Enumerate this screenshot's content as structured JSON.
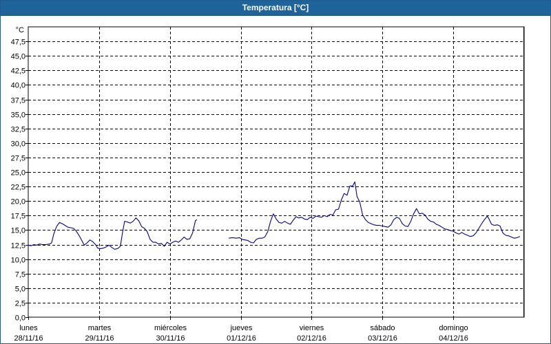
{
  "window": {
    "title": "Temperatura [°C]"
  },
  "chart_data": {
    "type": "line",
    "title": "Temperatura [°C]",
    "ylabel": "°C",
    "ylim": [
      0,
      50
    ],
    "yticks": [
      "0,0",
      "2,5",
      "5,0",
      "7,5",
      "10,0",
      "12,5",
      "15,0",
      "17,5",
      "20,0",
      "22,5",
      "25,0",
      "27,5",
      "30,0",
      "32,5",
      "35,0",
      "37,5",
      "40,0",
      "42,5",
      "45,0",
      "47,5"
    ],
    "xlim": [
      0,
      7
    ],
    "grid": true,
    "x_ticks": [
      {
        "day": "lunes",
        "date": "28/11/16"
      },
      {
        "day": "martes",
        "date": "29/11/16"
      },
      {
        "day": "miércoles",
        "date": "30/11/16"
      },
      {
        "day": "jueves",
        "date": "01/12/16"
      },
      {
        "day": "viernes",
        "date": "02/12/16"
      },
      {
        "day": "sábado",
        "date": "03/12/16"
      },
      {
        "day": "domingo",
        "date": "04/12/16"
      }
    ],
    "series": [
      {
        "color": "#00008b",
        "segments": [
          [
            [
              0.0,
              12.4
            ],
            [
              0.04,
              12.3
            ],
            [
              0.08,
              12.5
            ],
            [
              0.12,
              12.4
            ],
            [
              0.16,
              12.6
            ],
            [
              0.2,
              12.5
            ],
            [
              0.25,
              12.5
            ],
            [
              0.3,
              12.6
            ],
            [
              0.33,
              12.8
            ],
            [
              0.36,
              14.3
            ],
            [
              0.4,
              15.6
            ],
            [
              0.44,
              16.3
            ],
            [
              0.48,
              16.1
            ],
            [
              0.52,
              15.8
            ],
            [
              0.56,
              15.5
            ],
            [
              0.6,
              15.4
            ],
            [
              0.64,
              15.3
            ],
            [
              0.68,
              14.8
            ],
            [
              0.72,
              14.0
            ],
            [
              0.76,
              13.1
            ],
            [
              0.79,
              12.4
            ],
            [
              0.83,
              12.8
            ],
            [
              0.87,
              13.3
            ],
            [
              0.91,
              13.0
            ],
            [
              0.95,
              12.5
            ],
            [
              0.98,
              11.9
            ],
            [
              1.02,
              11.8
            ],
            [
              1.06,
              11.9
            ],
            [
              1.1,
              12.1
            ],
            [
              1.14,
              12.4
            ],
            [
              1.18,
              12.0
            ],
            [
              1.22,
              11.7
            ],
            [
              1.26,
              11.8
            ],
            [
              1.3,
              12.2
            ],
            [
              1.33,
              14.5
            ],
            [
              1.36,
              16.5
            ],
            [
              1.4,
              16.4
            ],
            [
              1.44,
              16.2
            ],
            [
              1.48,
              16.5
            ],
            [
              1.52,
              17.1
            ],
            [
              1.56,
              16.6
            ],
            [
              1.6,
              15.6
            ],
            [
              1.64,
              15.3
            ],
            [
              1.68,
              14.7
            ],
            [
              1.72,
              13.4
            ],
            [
              1.76,
              12.9
            ],
            [
              1.8,
              12.9
            ],
            [
              1.84,
              12.6
            ],
            [
              1.88,
              12.7
            ],
            [
              1.92,
              12.2
            ],
            [
              1.96,
              12.9
            ],
            [
              2.0,
              12.6
            ],
            [
              2.04,
              12.9
            ],
            [
              2.08,
              13.1
            ],
            [
              2.12,
              12.9
            ],
            [
              2.16,
              13.3
            ],
            [
              2.2,
              13.8
            ],
            [
              2.24,
              13.4
            ],
            [
              2.28,
              13.5
            ],
            [
              2.32,
              14.5
            ],
            [
              2.36,
              16.6
            ],
            [
              2.38,
              16.8
            ]
          ],
          [
            [
              2.83,
              13.6
            ],
            [
              2.88,
              13.7
            ],
            [
              2.94,
              13.6
            ],
            [
              2.98,
              13.7
            ],
            [
              3.02,
              13.4
            ],
            [
              3.06,
              13.3
            ],
            [
              3.1,
              13.2
            ],
            [
              3.14,
              12.9
            ],
            [
              3.18,
              12.8
            ],
            [
              3.22,
              13.4
            ],
            [
              3.26,
              13.6
            ],
            [
              3.3,
              13.6
            ],
            [
              3.34,
              13.8
            ],
            [
              3.38,
              14.7
            ],
            [
              3.42,
              16.5
            ],
            [
              3.46,
              17.8
            ],
            [
              3.5,
              16.9
            ],
            [
              3.54,
              16.3
            ],
            [
              3.58,
              16.2
            ],
            [
              3.62,
              16.5
            ],
            [
              3.66,
              16.2
            ],
            [
              3.7,
              16.0
            ],
            [
              3.74,
              16.7
            ],
            [
              3.78,
              17.3
            ],
            [
              3.82,
              17.1
            ],
            [
              3.86,
              17.2
            ],
            [
              3.9,
              16.9
            ],
            [
              3.94,
              16.8
            ],
            [
              3.98,
              17.2
            ],
            [
              4.02,
              17.0
            ],
            [
              4.06,
              17.4
            ],
            [
              4.1,
              17.3
            ],
            [
              4.14,
              17.2
            ],
            [
              4.18,
              17.5
            ],
            [
              4.22,
              17.3
            ],
            [
              4.26,
              17.7
            ],
            [
              4.3,
              17.6
            ],
            [
              4.34,
              18.5
            ],
            [
              4.38,
              18.6
            ],
            [
              4.42,
              20.2
            ],
            [
              4.46,
              21.3
            ],
            [
              4.5,
              21.0
            ],
            [
              4.54,
              22.6
            ],
            [
              4.58,
              22.6
            ],
            [
              4.61,
              23.3
            ],
            [
              4.64,
              20.8
            ],
            [
              4.68,
              19.8
            ],
            [
              4.72,
              17.6
            ],
            [
              4.76,
              16.8
            ],
            [
              4.8,
              16.3
            ],
            [
              4.84,
              16.1
            ],
            [
              4.88,
              15.9
            ],
            [
              4.92,
              15.8
            ],
            [
              4.96,
              15.8
            ],
            [
              5.0,
              15.7
            ],
            [
              5.04,
              15.6
            ],
            [
              5.08,
              15.5
            ],
            [
              5.12,
              15.9
            ],
            [
              5.16,
              16.8
            ],
            [
              5.2,
              17.2
            ],
            [
              5.24,
              17.0
            ],
            [
              5.28,
              16.1
            ],
            [
              5.32,
              15.7
            ],
            [
              5.36,
              15.6
            ],
            [
              5.4,
              16.5
            ],
            [
              5.44,
              17.8
            ],
            [
              5.48,
              18.7
            ],
            [
              5.52,
              17.8
            ],
            [
              5.56,
              17.9
            ],
            [
              5.6,
              17.6
            ],
            [
              5.64,
              16.9
            ],
            [
              5.68,
              16.5
            ],
            [
              5.72,
              16.4
            ],
            [
              5.76,
              16.0
            ],
            [
              5.8,
              15.8
            ],
            [
              5.84,
              15.5
            ],
            [
              5.88,
              15.2
            ],
            [
              5.92,
              15.1
            ],
            [
              5.96,
              14.9
            ],
            [
              6.0,
              14.8
            ],
            [
              6.04,
              14.5
            ],
            [
              6.08,
              14.3
            ],
            [
              6.12,
              14.6
            ],
            [
              6.16,
              14.3
            ],
            [
              6.2,
              14.1
            ],
            [
              6.24,
              13.9
            ],
            [
              6.28,
              14.0
            ],
            [
              6.32,
              14.5
            ],
            [
              6.36,
              15.3
            ],
            [
              6.4,
              16.1
            ],
            [
              6.44,
              16.8
            ],
            [
              6.48,
              17.4
            ],
            [
              6.5,
              17.0
            ],
            [
              6.54,
              16.0
            ],
            [
              6.58,
              15.8
            ],
            [
              6.62,
              15.9
            ],
            [
              6.66,
              15.7
            ],
            [
              6.7,
              14.5
            ],
            [
              6.74,
              14.1
            ],
            [
              6.78,
              14.0
            ],
            [
              6.82,
              13.8
            ],
            [
              6.86,
              13.6
            ],
            [
              6.9,
              13.7
            ],
            [
              6.94,
              13.9
            ]
          ]
        ]
      }
    ]
  }
}
